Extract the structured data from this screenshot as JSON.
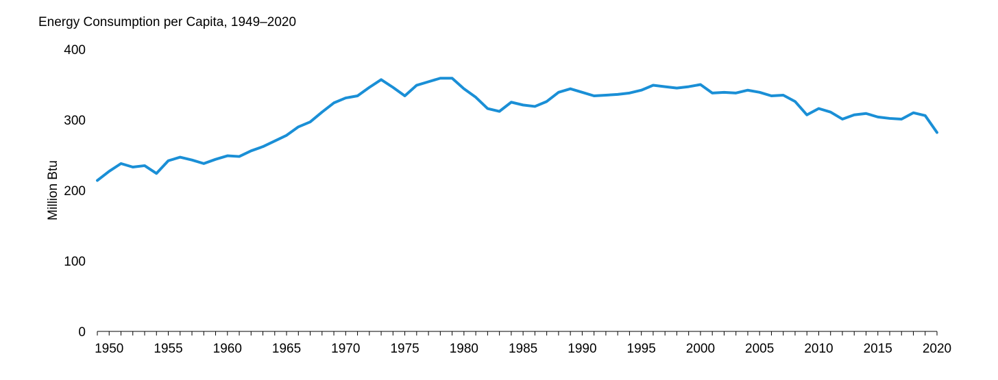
{
  "chart_data": {
    "type": "line",
    "title": "Energy Consumption per Capita, 1949–2020",
    "xlabel": "",
    "ylabel": "Million Btu",
    "xlim": [
      1949,
      2020
    ],
    "ylim": [
      0,
      400
    ],
    "y_ticks": [
      0,
      100,
      200,
      300,
      400
    ],
    "x_ticks": [
      1950,
      1955,
      1960,
      1965,
      1970,
      1975,
      1980,
      1985,
      1990,
      1995,
      2000,
      2005,
      2010,
      2015,
      2020
    ],
    "grid": false,
    "legend": "none",
    "line_color": "#1a8fd6",
    "series": [
      {
        "x": [
          1949,
          1950,
          1951,
          1952,
          1953,
          1954,
          1955,
          1956,
          1957,
          1958,
          1959,
          1960,
          1961,
          1962,
          1963,
          1964,
          1965,
          1966,
          1967,
          1968,
          1969,
          1970,
          1971,
          1972,
          1973,
          1974,
          1975,
          1976,
          1977,
          1978,
          1979,
          1980,
          1981,
          1982,
          1983,
          1984,
          1985,
          1986,
          1987,
          1988,
          1989,
          1990,
          1991,
          1992,
          1993,
          1994,
          1995,
          1996,
          1997,
          1998,
          1999,
          2000,
          2001,
          2002,
          2003,
          2004,
          2005,
          2006,
          2007,
          2008,
          2009,
          2010,
          2011,
          2012,
          2013,
          2014,
          2015,
          2016,
          2017,
          2018,
          2019,
          2020
        ],
        "values": [
          214,
          227,
          238,
          233,
          235,
          224,
          242,
          247,
          243,
          238,
          244,
          249,
          248,
          256,
          262,
          270,
          278,
          290,
          297,
          311,
          324,
          331,
          334,
          346,
          357,
          346,
          334,
          349,
          354,
          359,
          359,
          344,
          332,
          316,
          312,
          325,
          321,
          319,
          326,
          339,
          344,
          339,
          334,
          335,
          336,
          338,
          342,
          349,
          347,
          345,
          347,
          350,
          338,
          339,
          338,
          342,
          339,
          334,
          335,
          326,
          307,
          316,
          311,
          301,
          307,
          309,
          304,
          302,
          301,
          310,
          306,
          282
        ]
      }
    ]
  }
}
